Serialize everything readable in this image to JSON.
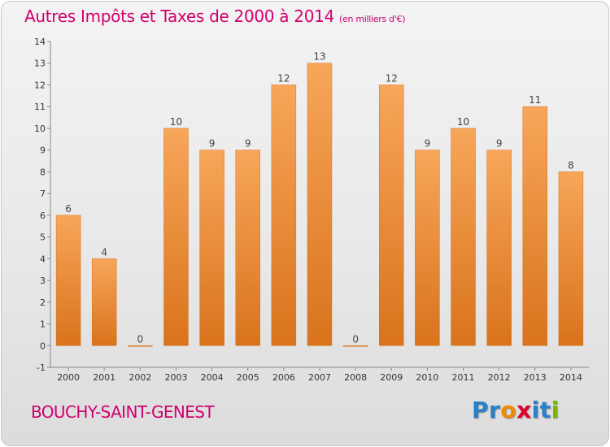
{
  "header": {
    "title": "Autres Impôts et Taxes de 2000 à 2014",
    "subtitle": "(en milliers d'€)"
  },
  "footer": {
    "place": "BOUCHY-SAINT-GENEST",
    "logo_letters": [
      "P",
      "r",
      "o",
      "x",
      "i",
      "t",
      "i"
    ],
    "logo_colors": [
      "#2a7fc9",
      "#2a7fc9",
      "#f08a00",
      "#e0002a",
      "#2a7fc9",
      "#2a7fc9",
      "#7ab800"
    ]
  },
  "colors": {
    "bar_top": "#f7a65a",
    "bar_bottom": "#d9731c",
    "title": "#d0006f"
  },
  "chart_data": {
    "type": "bar",
    "title": "Autres Impôts et Taxes de 2000 à 2014",
    "subtitle": "(en milliers d'€)",
    "categories": [
      "2000",
      "2001",
      "2002",
      "2003",
      "2004",
      "2005",
      "2006",
      "2007",
      "2008",
      "2009",
      "2010",
      "2011",
      "2012",
      "2013",
      "2014"
    ],
    "values": [
      6,
      4,
      0,
      10,
      9,
      9,
      12,
      13,
      0,
      12,
      9,
      10,
      9,
      11,
      8
    ],
    "data_labels": [
      "6",
      "4",
      "0",
      "10",
      "9",
      "9",
      "12",
      "13",
      "0",
      "12",
      "9",
      "10",
      "9",
      "11",
      "8"
    ],
    "yticks": [
      "-1",
      "0",
      "1",
      "2",
      "3",
      "4",
      "5",
      "6",
      "7",
      "8",
      "9",
      "10",
      "11",
      "12",
      "13",
      "14"
    ],
    "ylim": [
      -1,
      14
    ],
    "grid": false,
    "legend": "none"
  }
}
